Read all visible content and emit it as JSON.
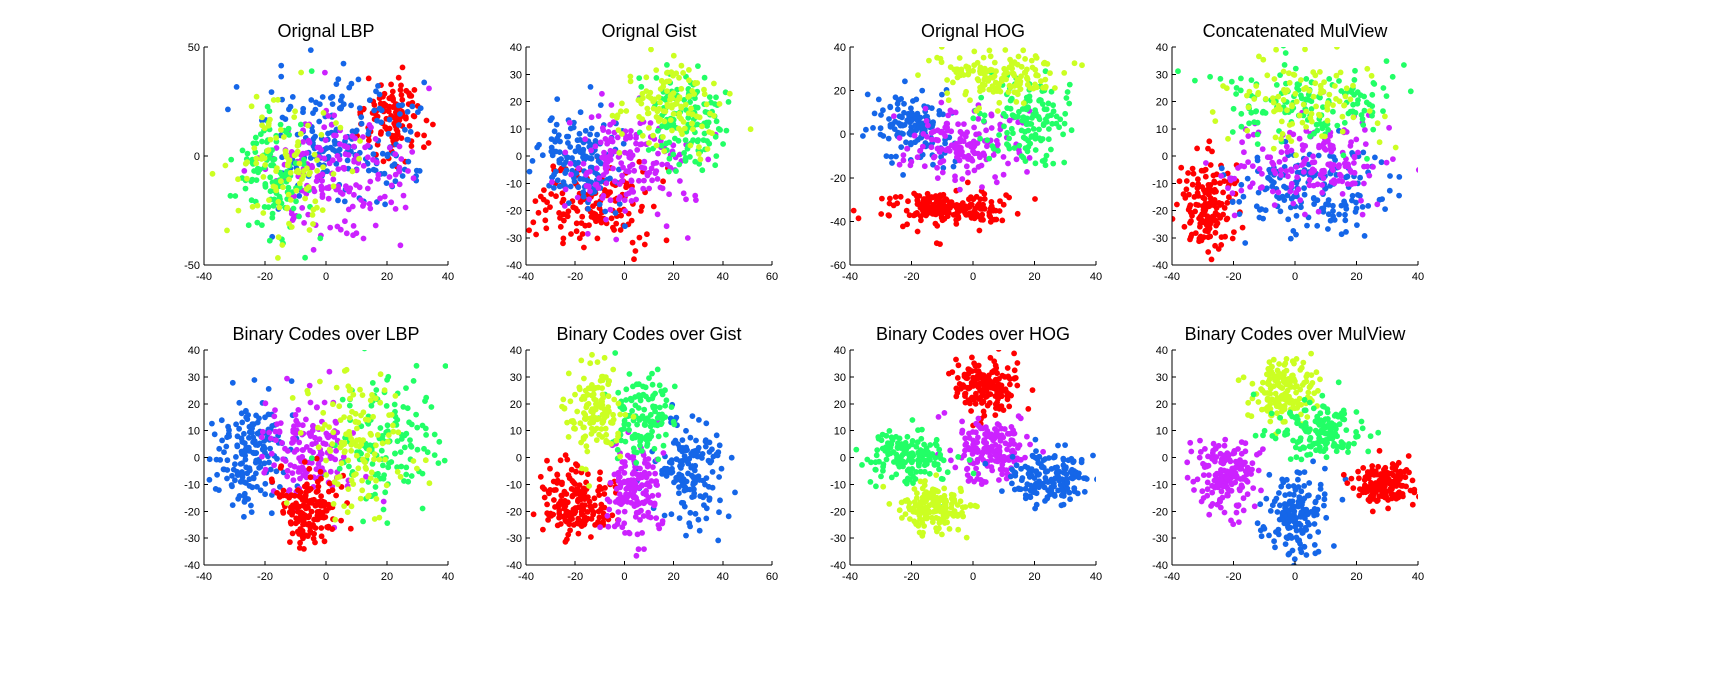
{
  "figure": {
    "background": "#ffffff"
  },
  "palette": {
    "red": "#ff0000",
    "blue": "#1566e8",
    "magenta": "#cc22ff",
    "green": "#22ff66",
    "yellow": "#ccff22"
  },
  "chart_data": [
    {
      "type": "scatter",
      "title": "Orignal LBP",
      "xlim": [
        -40,
        40
      ],
      "ylim": [
        -50,
        50
      ],
      "xticks": [
        -40,
        -20,
        0,
        20,
        40
      ],
      "yticks": [
        -50,
        0,
        50
      ],
      "grid": false,
      "clusters": [
        {
          "color": "red",
          "cx": 22,
          "cy": 16,
          "sx": 5,
          "sy": 10,
          "n": 120
        },
        {
          "color": "blue",
          "cx": 6,
          "cy": 5,
          "sx": 12,
          "sy": 14,
          "n": 200
        },
        {
          "color": "magenta",
          "cx": 4,
          "cy": -8,
          "sx": 12,
          "sy": 14,
          "n": 170
        },
        {
          "color": "green",
          "cx": -18,
          "cy": -8,
          "sx": 6,
          "sy": 16,
          "n": 120
        },
        {
          "color": "yellow",
          "cx": -14,
          "cy": -6,
          "sx": 8,
          "sy": 14,
          "n": 110
        }
      ]
    },
    {
      "type": "scatter",
      "title": "Orignal Gist",
      "xlim": [
        -40,
        60
      ],
      "ylim": [
        -40,
        40
      ],
      "xticks": [
        -40,
        -20,
        0,
        20,
        40,
        60
      ],
      "yticks": [
        -40,
        -30,
        -20,
        -10,
        0,
        10,
        20,
        30,
        40
      ],
      "grid": false,
      "clusters": [
        {
          "color": "red",
          "cx": -12,
          "cy": -18,
          "sx": 12,
          "sy": 8,
          "n": 160
        },
        {
          "color": "blue",
          "cx": -16,
          "cy": 0,
          "sx": 8,
          "sy": 9,
          "n": 150
        },
        {
          "color": "magenta",
          "cx": 0,
          "cy": -2,
          "sx": 12,
          "sy": 11,
          "n": 170
        },
        {
          "color": "green",
          "cx": 25,
          "cy": 14,
          "sx": 8,
          "sy": 9,
          "n": 140
        },
        {
          "color": "yellow",
          "cx": 18,
          "cy": 18,
          "sx": 10,
          "sy": 9,
          "n": 130
        }
      ]
    },
    {
      "type": "scatter",
      "title": "Orignal HOG",
      "xlim": [
        -40,
        40
      ],
      "ylim": [
        -60,
        40
      ],
      "xticks": [
        -40,
        -20,
        0,
        20,
        40
      ],
      "yticks": [
        -60,
        -40,
        -20,
        0,
        20,
        40
      ],
      "grid": false,
      "clusters": [
        {
          "color": "red",
          "cx": -8,
          "cy": -34,
          "sx": 10,
          "sy": 4,
          "n": 200
        },
        {
          "color": "blue",
          "cx": -18,
          "cy": 4,
          "sx": 6,
          "sy": 8,
          "n": 140
        },
        {
          "color": "magenta",
          "cx": -4,
          "cy": -4,
          "sx": 9,
          "sy": 8,
          "n": 160
        },
        {
          "color": "green",
          "cx": 18,
          "cy": 6,
          "sx": 7,
          "sy": 10,
          "n": 140
        },
        {
          "color": "yellow",
          "cx": 10,
          "cy": 26,
          "sx": 11,
          "sy": 6,
          "n": 150
        }
      ]
    },
    {
      "type": "scatter",
      "title": "Concatenated MulView",
      "xlim": [
        -40,
        40
      ],
      "ylim": [
        -40,
        40
      ],
      "xticks": [
        -40,
        -20,
        0,
        20,
        40
      ],
      "yticks": [
        -40,
        -30,
        -20,
        -10,
        0,
        10,
        20,
        30,
        40
      ],
      "grid": false,
      "clusters": [
        {
          "color": "red",
          "cx": -28,
          "cy": -18,
          "sx": 5,
          "sy": 8,
          "n": 150
        },
        {
          "color": "blue",
          "cx": 5,
          "cy": -12,
          "sx": 13,
          "sy": 8,
          "n": 180
        },
        {
          "color": "magenta",
          "cx": 5,
          "cy": -3,
          "sx": 14,
          "sy": 7,
          "n": 170
        },
        {
          "color": "green",
          "cx": 5,
          "cy": 20,
          "sx": 14,
          "sy": 8,
          "n": 150
        },
        {
          "color": "yellow",
          "cx": 2,
          "cy": 20,
          "sx": 12,
          "sy": 9,
          "n": 110
        }
      ]
    },
    {
      "type": "scatter",
      "title": "Binary Codes over LBP",
      "xlim": [
        -40,
        40
      ],
      "ylim": [
        -40,
        40
      ],
      "xticks": [
        -40,
        -20,
        0,
        20,
        40
      ],
      "yticks": [
        -40,
        -30,
        -20,
        -10,
        0,
        10,
        20,
        30,
        40
      ],
      "grid": false,
      "clusters": [
        {
          "color": "blue",
          "cx": -25,
          "cy": 0,
          "sx": 6,
          "sy": 10,
          "n": 170
        },
        {
          "color": "magenta",
          "cx": -5,
          "cy": 2,
          "sx": 7,
          "sy": 10,
          "n": 150
        },
        {
          "color": "red",
          "cx": -6,
          "cy": -18,
          "sx": 5,
          "sy": 7,
          "n": 160
        },
        {
          "color": "green",
          "cx": 20,
          "cy": 5,
          "sx": 8,
          "sy": 12,
          "n": 140
        },
        {
          "color": "yellow",
          "cx": 12,
          "cy": 4,
          "sx": 9,
          "sy": 13,
          "n": 130
        }
      ]
    },
    {
      "type": "scatter",
      "title": "Binary Codes over Gist",
      "xlim": [
        -40,
        60
      ],
      "ylim": [
        -40,
        40
      ],
      "xticks": [
        -40,
        -20,
        0,
        20,
        40,
        60
      ],
      "yticks": [
        -40,
        -30,
        -20,
        -10,
        0,
        10,
        20,
        30,
        40
      ],
      "grid": false,
      "clusters": [
        {
          "color": "red",
          "cx": -20,
          "cy": -16,
          "sx": 7,
          "sy": 7,
          "n": 170
        },
        {
          "color": "blue",
          "cx": 27,
          "cy": -5,
          "sx": 7,
          "sy": 10,
          "n": 160
        },
        {
          "color": "magenta",
          "cx": 4,
          "cy": -12,
          "sx": 6,
          "sy": 9,
          "n": 160
        },
        {
          "color": "green",
          "cx": 7,
          "cy": 15,
          "sx": 6,
          "sy": 8,
          "n": 130
        },
        {
          "color": "yellow",
          "cx": -12,
          "cy": 18,
          "sx": 6,
          "sy": 8,
          "n": 140
        }
      ]
    },
    {
      "type": "scatter",
      "title": "Binary Codes over HOG",
      "xlim": [
        -40,
        40
      ],
      "ylim": [
        -40,
        40
      ],
      "xticks": [
        -40,
        -20,
        0,
        20,
        40
      ],
      "yticks": [
        -40,
        -30,
        -20,
        -10,
        0,
        10,
        20,
        30,
        40
      ],
      "grid": false,
      "clusters": [
        {
          "color": "red",
          "cx": 4,
          "cy": 27,
          "sx": 5,
          "sy": 5,
          "n": 170
        },
        {
          "color": "magenta",
          "cx": 5,
          "cy": 2,
          "sx": 6,
          "sy": 6,
          "n": 170
        },
        {
          "color": "blue",
          "cx": 25,
          "cy": -7,
          "sx": 7,
          "sy": 5,
          "n": 160
        },
        {
          "color": "green",
          "cx": -20,
          "cy": 0,
          "sx": 7,
          "sy": 5,
          "n": 150
        },
        {
          "color": "yellow",
          "cx": -13,
          "cy": -18,
          "sx": 6,
          "sy": 5,
          "n": 160
        }
      ]
    },
    {
      "type": "scatter",
      "title": "Binary Codes over MulView",
      "xlim": [
        -40,
        40
      ],
      "ylim": [
        -40,
        40
      ],
      "xticks": [
        -40,
        -20,
        0,
        20,
        40
      ],
      "yticks": [
        -40,
        -30,
        -20,
        -10,
        0,
        10,
        20,
        30,
        40
      ],
      "grid": false,
      "clusters": [
        {
          "color": "yellow",
          "cx": -4,
          "cy": 25,
          "sx": 5,
          "sy": 6,
          "n": 160
        },
        {
          "color": "green",
          "cx": 8,
          "cy": 10,
          "sx": 7,
          "sy": 5,
          "n": 160
        },
        {
          "color": "magenta",
          "cx": -22,
          "cy": -6,
          "sx": 6,
          "sy": 7,
          "n": 170
        },
        {
          "color": "blue",
          "cx": 0,
          "cy": -22,
          "sx": 5,
          "sy": 8,
          "n": 160
        },
        {
          "color": "red",
          "cx": 28,
          "cy": -10,
          "sx": 5,
          "sy": 4,
          "n": 170
        }
      ]
    }
  ]
}
